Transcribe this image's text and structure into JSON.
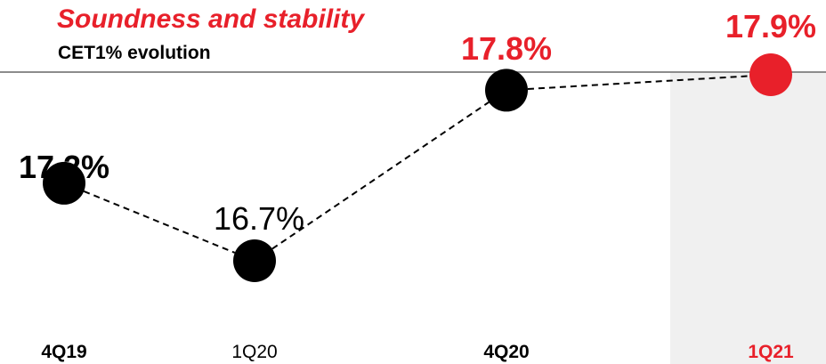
{
  "header": {
    "title": "Soundness and stability",
    "subtitle": "CET1% evolution"
  },
  "colors": {
    "accent": "#e8202a",
    "default_point": "#000000",
    "highlight_band": "#f0f0f0",
    "rule": "#8c8c8c"
  },
  "chart_data": {
    "type": "line",
    "categories": [
      "4Q19",
      "1Q20",
      "4Q20",
      "1Q21"
    ],
    "values": [
      17.2,
      16.7,
      17.8,
      17.9
    ],
    "value_labels": [
      "17.2%",
      "16.7%",
      "17.8%",
      "17.9%"
    ],
    "label_style": [
      "bold",
      "regular",
      "bold-red",
      "bold-red"
    ],
    "category_style": [
      "bold",
      "regular",
      "bold",
      "bold-red"
    ],
    "highlighted_category": "1Q21",
    "line_style": "dashed",
    "grid": false,
    "legend": "none"
  }
}
